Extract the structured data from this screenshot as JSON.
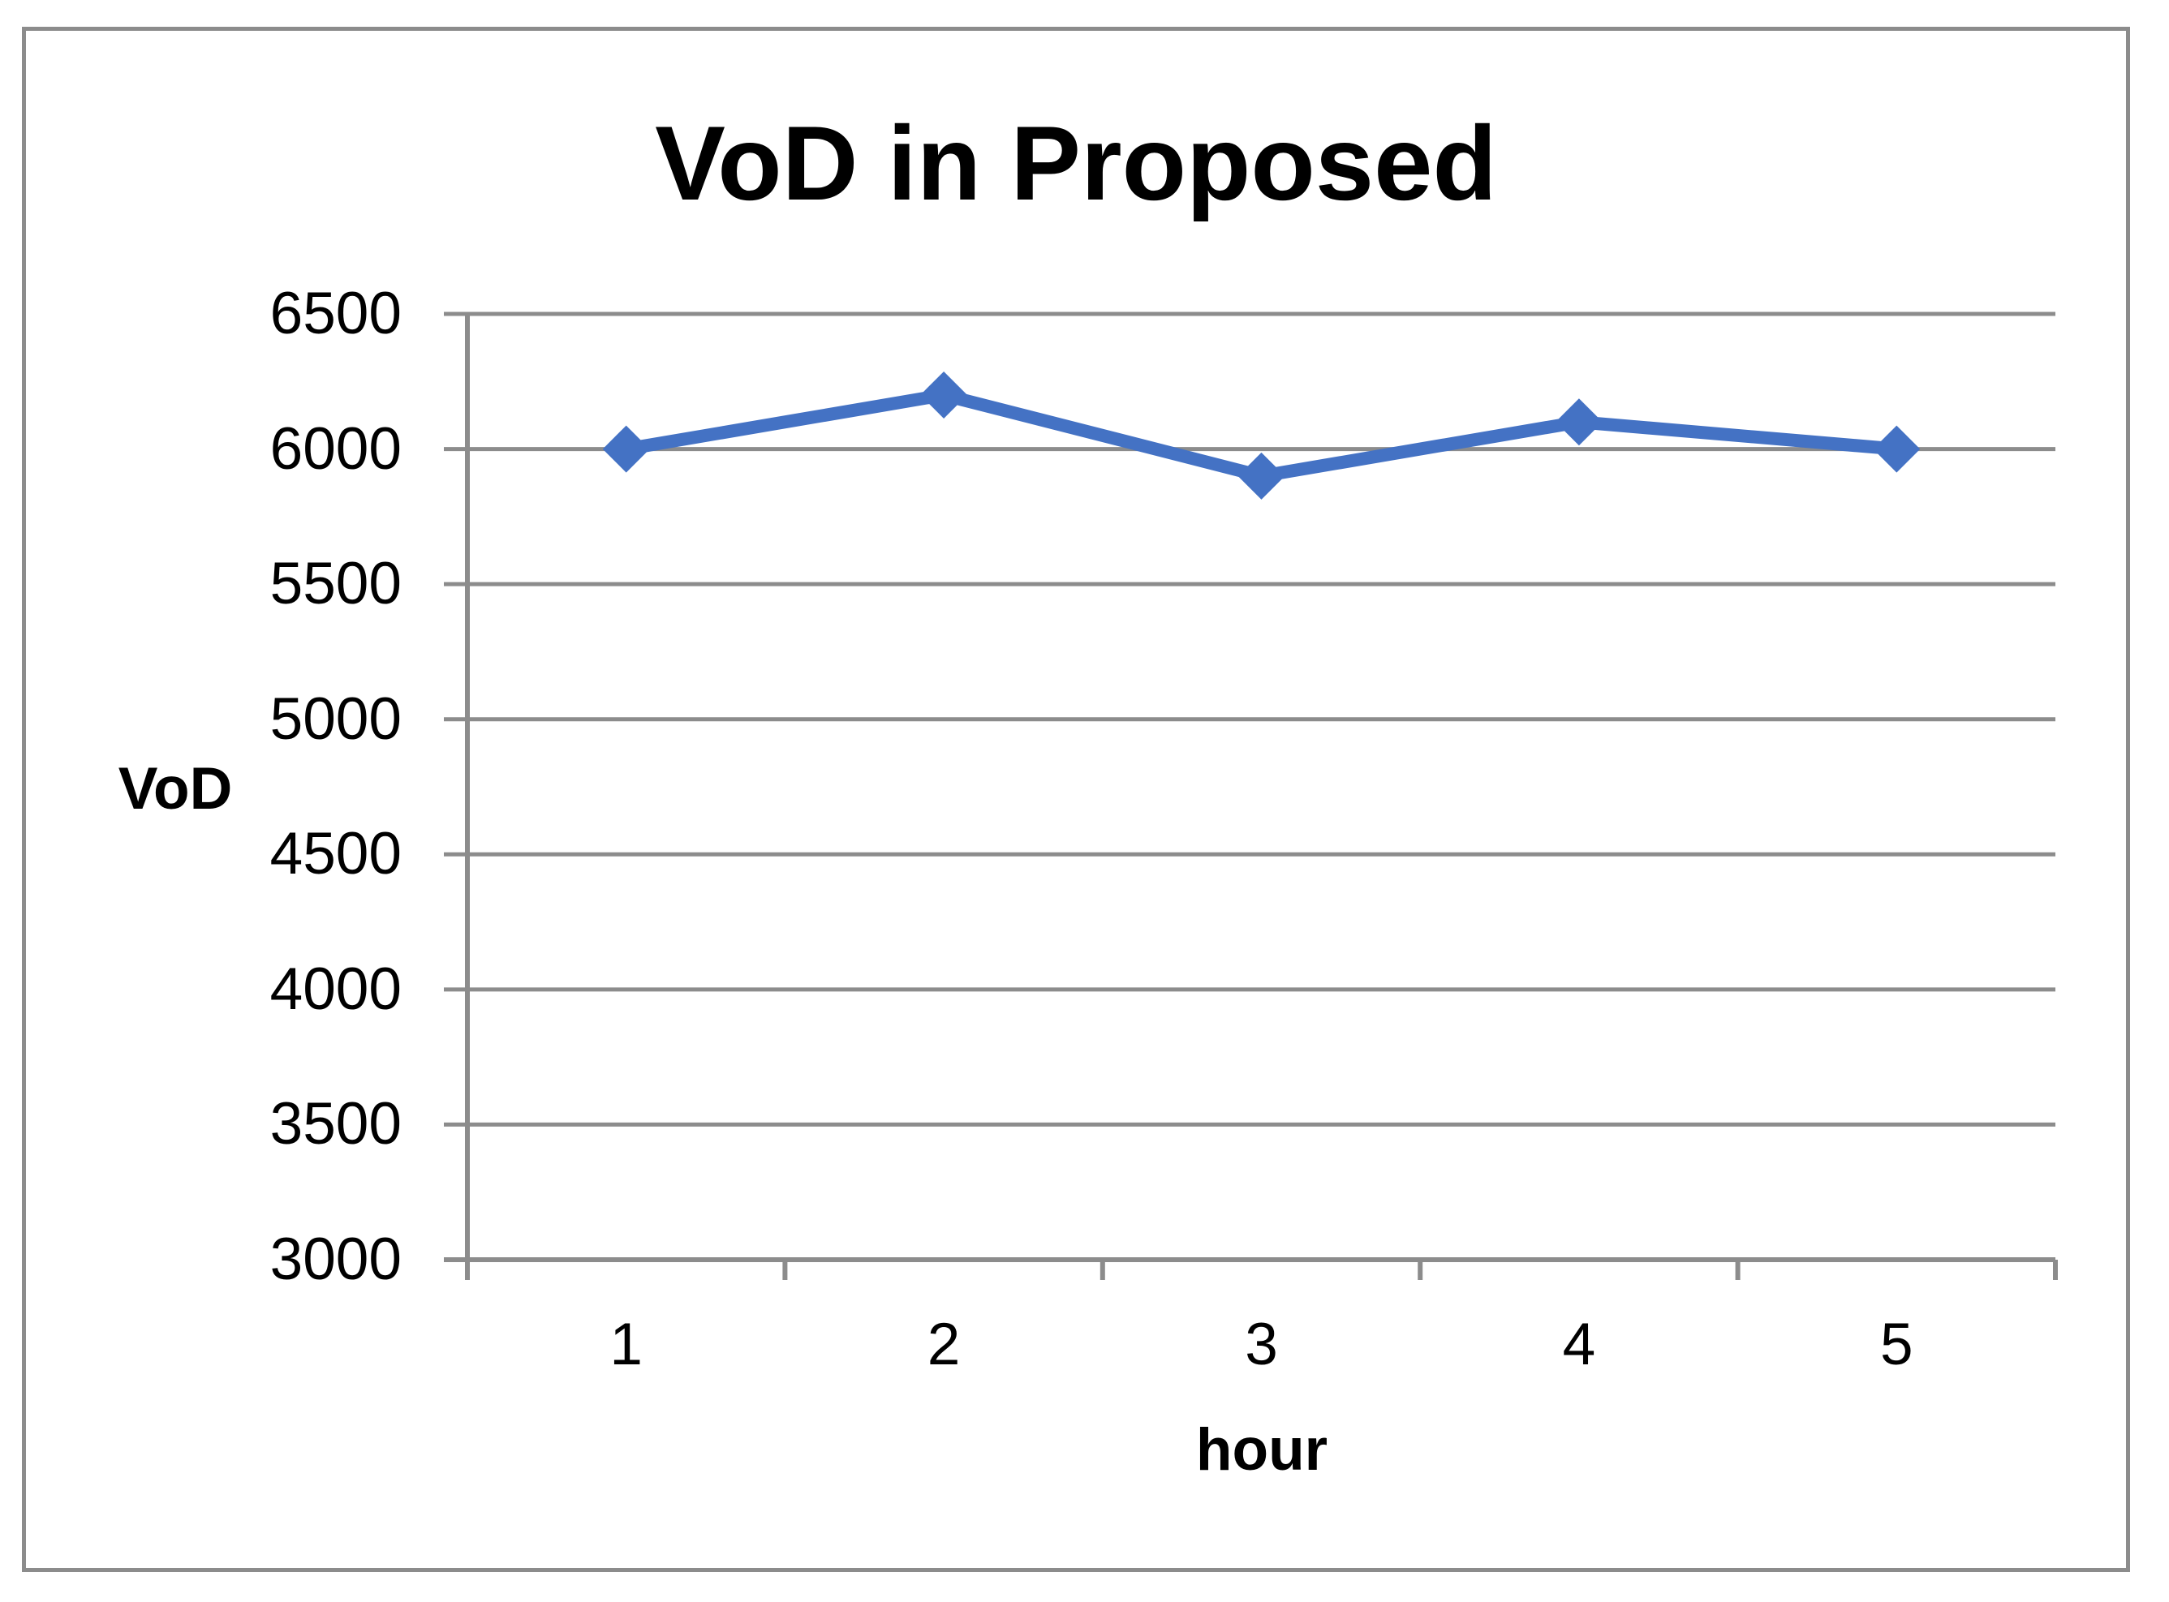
{
  "window": {
    "background": "#FFFFFF",
    "frame_border_color": "#8C8C8C"
  },
  "chart_data": {
    "type": "line",
    "title": "VoD in Proposed",
    "xlabel": "hour",
    "ylabel": "VoD",
    "categories": [
      1,
      2,
      3,
      4,
      5
    ],
    "values": [
      6000,
      6200,
      5900,
      6100,
      6000
    ],
    "yticks": [
      3000,
      3500,
      4000,
      4500,
      5000,
      5500,
      6000,
      6500
    ],
    "ylim": [
      3000,
      6500
    ],
    "ytick_step": 500,
    "grid": "horizontal",
    "legend": "none",
    "marker": "diamond",
    "line_color": "#4472C4",
    "grid_color": "#8C8C8C",
    "text_color": "#000000"
  }
}
